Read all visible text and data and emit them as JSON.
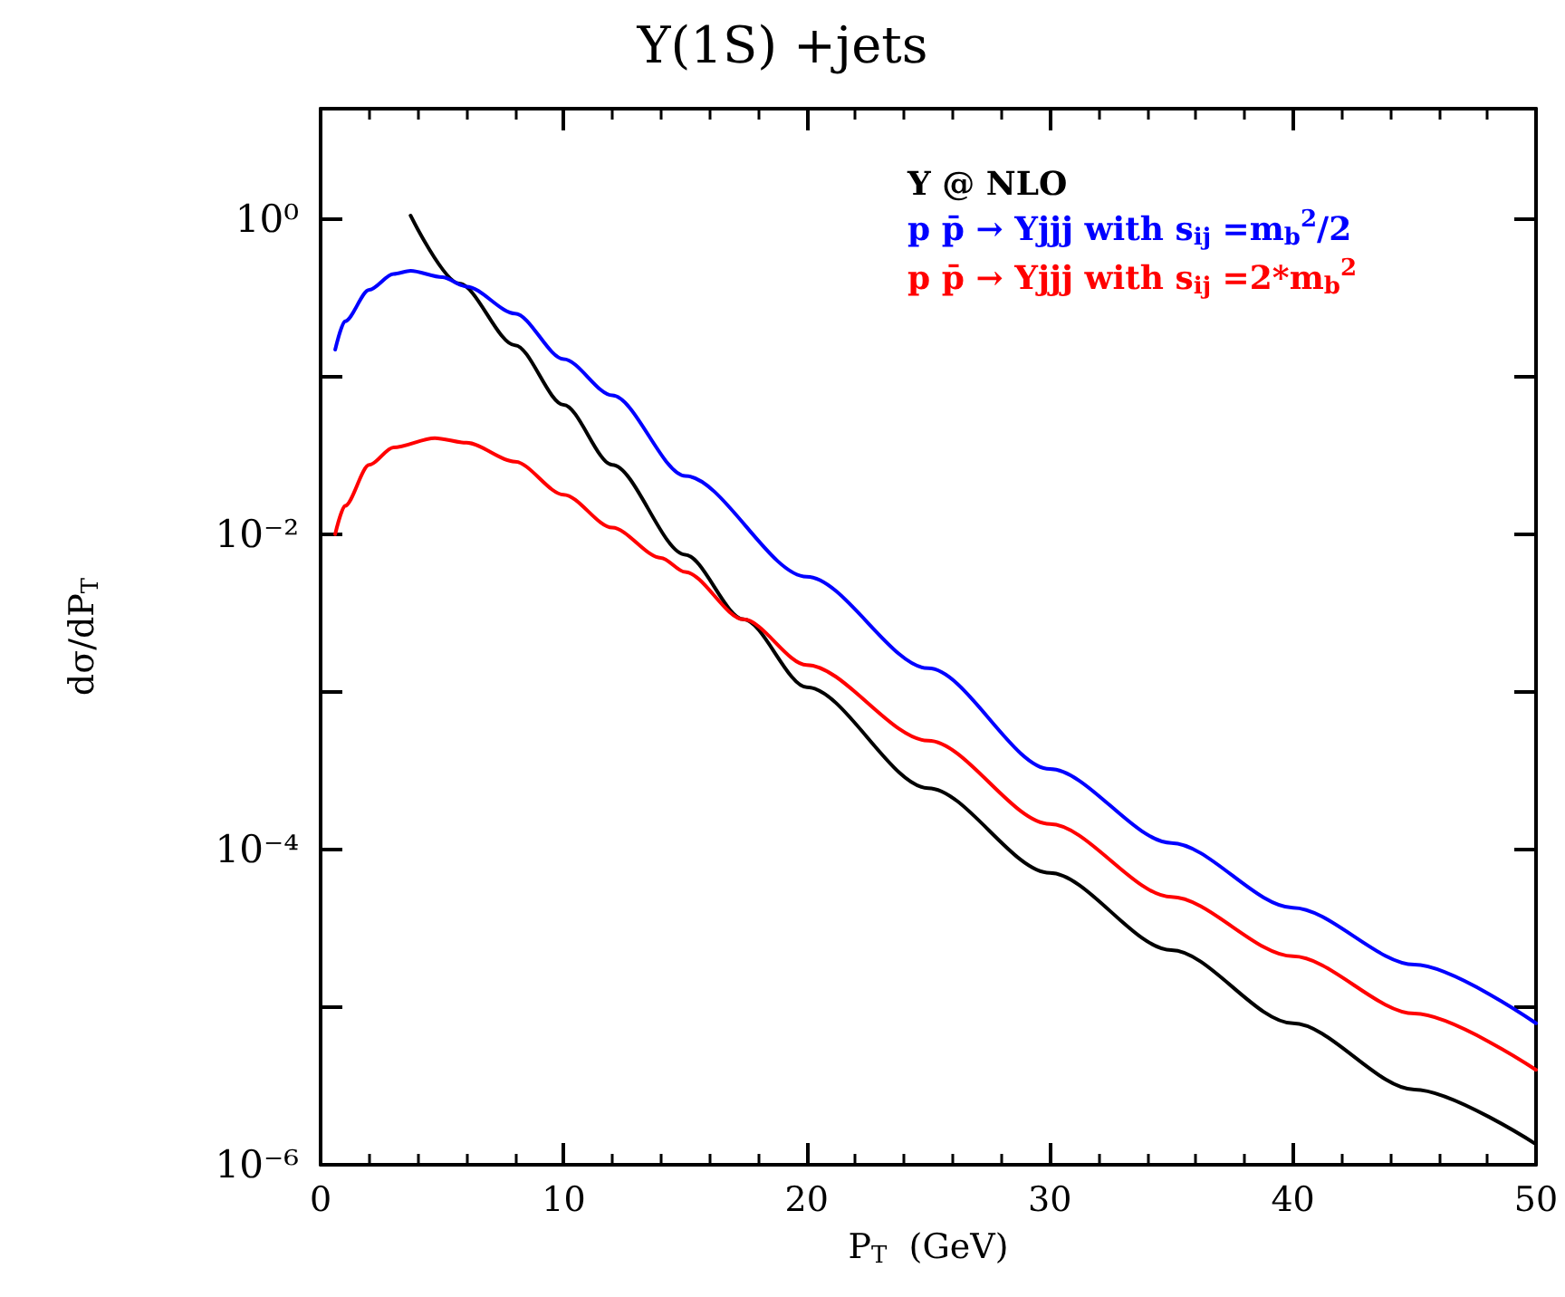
{
  "chart_data": {
    "type": "line",
    "title": "Υ(1S) +jets",
    "xlabel": "P$_{T}$  (GeV)",
    "ylabel": "dσ/dP$_{T}$",
    "log": "y",
    "grid": false,
    "legend": "top right",
    "marker": "none",
    "line_style": "solid",
    "xlim": [
      0,
      50
    ],
    "xticks": [
      0,
      10,
      20,
      30,
      40,
      50
    ],
    "ylim": [
      1e-06,
      5
    ],
    "yticks": [
      {
        "value": 1e-06,
        "label": "10⁻⁶"
      },
      {
        "value": 1e-05,
        "label": null
      },
      {
        "value": 0.0001,
        "label": "10⁻⁴"
      },
      {
        "value": 0.001,
        "label": null
      },
      {
        "value": 0.01,
        "label": "10⁻²"
      },
      {
        "value": 0.1,
        "label": null
      },
      {
        "value": 1,
        "label": "10⁰"
      }
    ],
    "series": [
      {
        "name": "Υ @ NLO",
        "color": "#000000",
        "x": [
          3.7,
          5.7,
          8,
          10,
          12,
          15,
          17.4,
          20,
          25,
          30,
          35,
          40,
          45,
          50
        ],
        "values": [
          1.05,
          0.389,
          0.158,
          0.0661,
          0.0275,
          0.00741,
          0.00288,
          0.00107,
          0.000245,
          7.1e-05,
          2.3e-05,
          7.9e-06,
          3e-06,
          1.35e-06
        ]
      },
      {
        "name": "p p̄ → Υjjj with s$_{ij}$ =m$_{b}$$^{2}$/2",
        "color": "#0000ff",
        "x": [
          0.6,
          1,
          2,
          3,
          3.7,
          5,
          6,
          8,
          10,
          12,
          15,
          20,
          25,
          30,
          35,
          40,
          45,
          50
        ],
        "values": [
          0.148,
          0.224,
          0.355,
          0.447,
          0.468,
          0.427,
          0.372,
          0.251,
          0.129,
          0.0759,
          0.0234,
          0.00537,
          0.00141,
          0.000324,
          0.00011,
          4.27e-05,
          1.86e-05,
          7.9e-06
        ]
      },
      {
        "name": "p p̄ → Υjjj with s$_{ij}$ =2*m$_{b}$$^{2}$",
        "color": "#ff0000",
        "x": [
          0.6,
          1,
          2,
          3,
          4.7,
          6,
          8,
          10,
          12,
          14,
          15,
          17.4,
          20,
          25,
          30,
          35,
          40,
          45,
          50
        ],
        "values": [
          0.01,
          0.0151,
          0.0275,
          0.0355,
          0.0407,
          0.038,
          0.0288,
          0.0178,
          0.011,
          0.00708,
          0.00575,
          0.00288,
          0.00148,
          0.00049,
          0.000145,
          5e-05,
          2.1e-05,
          9.1e-06,
          4e-06
        ]
      }
    ]
  }
}
